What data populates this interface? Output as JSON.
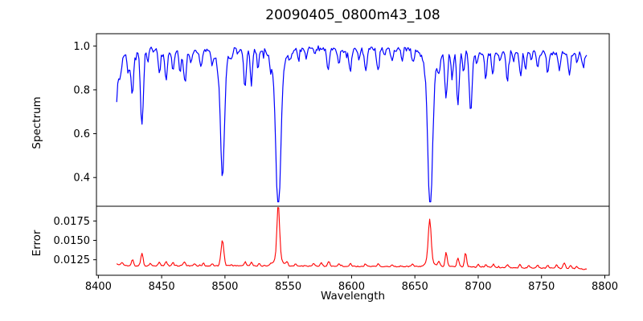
{
  "figure": {
    "title": "20090405_0800m43_108",
    "xlabel": "Wavelength",
    "background_color": "#ffffff",
    "frame_color": "#000000",
    "text_color": "#000000"
  },
  "chart_data": [
    {
      "type": "line",
      "title": "20090405_0800m43_108",
      "ylabel": "Spectrum",
      "xlabel": "Wavelength",
      "legend": "none",
      "grid": false,
      "line_color": "#0000ff",
      "xlim": [
        8398.5,
        8803.5
      ],
      "ylim": [
        0.269,
        1.056
      ],
      "yticks": [
        0.4,
        0.6,
        0.8,
        1.0
      ],
      "ytick_labels": [
        "0.4",
        "0.6",
        "0.8",
        "1.0"
      ],
      "x_data_range": [
        8414.5,
        8786
      ],
      "sample_step": 0.8,
      "seed": 7,
      "continuum_ref": 0.97,
      "noise_amp": 0.011,
      "spike_prob": 0.1,
      "spike_amp": 0.028,
      "continuum": [
        [
          8414,
          0.93
        ],
        [
          8418,
          0.955
        ],
        [
          8425,
          0.965
        ],
        [
          8432,
          0.975
        ],
        [
          8442,
          0.985
        ],
        [
          8452,
          0.97
        ],
        [
          8462,
          0.975
        ],
        [
          8472,
          0.972
        ],
        [
          8480,
          0.975
        ],
        [
          8490,
          0.978
        ],
        [
          8500,
          0.985
        ],
        [
          8512,
          0.99
        ],
        [
          8524,
          0.985
        ],
        [
          8535,
          0.988
        ],
        [
          8545,
          0.985
        ],
        [
          8555,
          0.985
        ],
        [
          8565,
          0.988
        ],
        [
          8575,
          0.99
        ],
        [
          8585,
          0.985
        ],
        [
          8595,
          0.975
        ],
        [
          8605,
          0.982
        ],
        [
          8615,
          0.985
        ],
        [
          8625,
          0.988
        ],
        [
          8635,
          0.985
        ],
        [
          8645,
          0.99
        ],
        [
          8655,
          0.985
        ],
        [
          8663,
          0.975
        ],
        [
          8672,
          0.97
        ],
        [
          8680,
          0.972
        ],
        [
          8690,
          0.97
        ],
        [
          8700,
          0.968
        ],
        [
          8710,
          0.97
        ],
        [
          8720,
          0.972
        ],
        [
          8730,
          0.97
        ],
        [
          8740,
          0.972
        ],
        [
          8750,
          0.968
        ],
        [
          8760,
          0.97
        ],
        [
          8770,
          0.965
        ],
        [
          8778,
          0.968
        ],
        [
          8786,
          0.962
        ]
      ],
      "absorption_lines_comment": "each entry = [wavelength, core_flux, sigma_angstrom]; three deepest are the Ca II triplet 8498/8542/8662",
      "absorption_lines": [
        [
          8413.0,
          0.78,
          2.2
        ],
        [
          8417.5,
          0.9,
          0.9
        ],
        [
          8423.5,
          0.89,
          0.9
        ],
        [
          8426.8,
          0.775,
          1.0
        ],
        [
          8434.4,
          0.625,
          1.1
        ],
        [
          8439.0,
          0.91,
          0.8
        ],
        [
          8448.2,
          0.87,
          0.9
        ],
        [
          8453.5,
          0.835,
          1.0
        ],
        [
          8459.0,
          0.875,
          0.9
        ],
        [
          8464.5,
          0.875,
          0.8
        ],
        [
          8468.4,
          0.83,
          1.0
        ],
        [
          8473.0,
          0.92,
          0.8
        ],
        [
          8481.0,
          0.9,
          0.9
        ],
        [
          8490.0,
          0.915,
          0.8
        ],
        [
          8494.0,
          0.93,
          0.7
        ],
        [
          8498.0,
          0.45,
          1.5
        ],
        [
          8498.0,
          0.9,
          4.0
        ],
        [
          8505.0,
          0.93,
          0.8
        ],
        [
          8510.0,
          0.94,
          0.7
        ],
        [
          8515.8,
          0.79,
          1.0
        ],
        [
          8520.8,
          0.81,
          0.9
        ],
        [
          8526.0,
          0.885,
          0.8
        ],
        [
          8536.0,
          0.93,
          0.8
        ],
        [
          8542.1,
          0.31,
          1.9
        ],
        [
          8542.1,
          0.88,
          5.0
        ],
        [
          8551.5,
          0.93,
          0.8
        ],
        [
          8558.0,
          0.935,
          0.8
        ],
        [
          8564.0,
          0.93,
          0.7
        ],
        [
          8571.0,
          0.935,
          0.7
        ],
        [
          8581.5,
          0.885,
          1.0
        ],
        [
          8590.0,
          0.915,
          0.8
        ],
        [
          8599.0,
          0.87,
          0.9
        ],
        [
          8606.0,
          0.93,
          0.7
        ],
        [
          8611.3,
          0.87,
          1.0
        ],
        [
          8620.8,
          0.87,
          1.0
        ],
        [
          8626.0,
          0.93,
          0.7
        ],
        [
          8632.0,
          0.92,
          0.8
        ],
        [
          8640.0,
          0.92,
          0.8
        ],
        [
          8648.5,
          0.9,
          0.9
        ],
        [
          8662.1,
          0.33,
          1.8
        ],
        [
          8662.1,
          0.88,
          5.0
        ],
        [
          8668.5,
          0.91,
          0.8
        ],
        [
          8674.7,
          0.76,
          1.0
        ],
        [
          8679.5,
          0.85,
          0.8
        ],
        [
          8684.0,
          0.73,
          1.0
        ],
        [
          8688.5,
          0.88,
          0.7
        ],
        [
          8694.0,
          0.7,
          1.1
        ],
        [
          8699.0,
          0.92,
          0.7
        ],
        [
          8706.0,
          0.85,
          0.9
        ],
        [
          8711.5,
          0.87,
          0.9
        ],
        [
          8717.0,
          0.93,
          0.7
        ],
        [
          8723.0,
          0.84,
          0.9
        ],
        [
          8728.0,
          0.92,
          0.7
        ],
        [
          8733.5,
          0.87,
          0.9
        ],
        [
          8737.5,
          0.89,
          0.8
        ],
        [
          8742.0,
          0.93,
          0.7
        ],
        [
          8747.0,
          0.9,
          0.8
        ],
        [
          8755.0,
          0.875,
          0.9
        ],
        [
          8764.0,
          0.89,
          0.8
        ],
        [
          8772.0,
          0.865,
          0.9
        ],
        [
          8778.0,
          0.92,
          0.7
        ],
        [
          8783.0,
          0.9,
          0.8
        ]
      ]
    },
    {
      "type": "line",
      "ylabel": "Error",
      "xlabel": "Wavelength",
      "legend": "none",
      "grid": false,
      "line_color": "#ff0000",
      "xlim": [
        8398.5,
        8803.5
      ],
      "ylim": [
        0.0105,
        0.0194
      ],
      "yticks": [
        0.0125,
        0.015,
        0.0175
      ],
      "ytick_labels": [
        "0.0125",
        "0.0150",
        "0.0175"
      ],
      "xticks": [
        8400,
        8450,
        8500,
        8550,
        8600,
        8650,
        8700,
        8750,
        8800
      ],
      "xtick_labels": [
        "8400",
        "8450",
        "8500",
        "8550",
        "8600",
        "8650",
        "8700",
        "8750",
        "8800"
      ],
      "x_data_range": [
        8414.5,
        8786
      ],
      "sample_step": 0.8,
      "seed": 13,
      "noise_amp": 6e-05,
      "spike_prob": 0.05,
      "spike_amp": 0.00015,
      "baseline": [
        [
          8414,
          0.012
        ],
        [
          8420,
          0.01175
        ],
        [
          8430,
          0.01172
        ],
        [
          8445,
          0.01172
        ],
        [
          8460,
          0.01173
        ],
        [
          8480,
          0.0117
        ],
        [
          8500,
          0.01172
        ],
        [
          8520,
          0.0117
        ],
        [
          8540,
          0.01172
        ],
        [
          8560,
          0.01168
        ],
        [
          8580,
          0.01168
        ],
        [
          8600,
          0.01165
        ],
        [
          8620,
          0.01163
        ],
        [
          8640,
          0.01163
        ],
        [
          8660,
          0.01165
        ],
        [
          8680,
          0.01163
        ],
        [
          8700,
          0.01155
        ],
        [
          8720,
          0.0115
        ],
        [
          8740,
          0.01145
        ],
        [
          8760,
          0.01142
        ],
        [
          8775,
          0.01138
        ],
        [
          8786,
          0.01125
        ]
      ],
      "peaks_comment": "each entry = [wavelength, height_above_baseline, sigma_angstrom]",
      "peaks": [
        [
          8419,
          0.00035,
          0.8
        ],
        [
          8427,
          0.00085,
          0.8
        ],
        [
          8434.4,
          0.00165,
          0.9
        ],
        [
          8441,
          0.0003,
          0.7
        ],
        [
          8448,
          0.00045,
          0.8
        ],
        [
          8453.5,
          0.00055,
          0.8
        ],
        [
          8459,
          0.0004,
          0.7
        ],
        [
          8468,
          0.00055,
          0.8
        ],
        [
          8476,
          0.0003,
          0.7
        ],
        [
          8483,
          0.00035,
          0.7
        ],
        [
          8490,
          0.0003,
          0.7
        ],
        [
          8498,
          0.00335,
          1.1
        ],
        [
          8505,
          0.0002,
          0.7
        ],
        [
          8516,
          0.00055,
          0.8
        ],
        [
          8521,
          0.00045,
          0.8
        ],
        [
          8527,
          0.0003,
          0.7
        ],
        [
          8536,
          0.0002,
          0.7
        ],
        [
          8542.1,
          0.00685,
          1.0
        ],
        [
          8542.1,
          0.0012,
          2.8
        ],
        [
          8549,
          0.0005,
          0.8
        ],
        [
          8556,
          0.0002,
          0.7
        ],
        [
          8570,
          0.00035,
          0.7
        ],
        [
          8576,
          0.0004,
          0.7
        ],
        [
          8582,
          0.0006,
          0.8
        ],
        [
          8590,
          0.0003,
          0.7
        ],
        [
          8599,
          0.0004,
          0.7
        ],
        [
          8611,
          0.00035,
          0.7
        ],
        [
          8621,
          0.00035,
          0.7
        ],
        [
          8632,
          0.0002,
          0.7
        ],
        [
          8648,
          0.0003,
          0.7
        ],
        [
          8661.7,
          0.0052,
          1.1
        ],
        [
          8661.7,
          0.0009,
          2.6
        ],
        [
          8669,
          0.0007,
          0.8
        ],
        [
          8674.7,
          0.00185,
          0.8
        ],
        [
          8684,
          0.0011,
          0.8
        ],
        [
          8690,
          0.00185,
          0.8
        ],
        [
          8700,
          0.0004,
          0.7
        ],
        [
          8706,
          0.0003,
          0.7
        ],
        [
          8712,
          0.0004,
          0.7
        ],
        [
          8723,
          0.00035,
          0.7
        ],
        [
          8733,
          0.00045,
          0.7
        ],
        [
          8740,
          0.0003,
          0.7
        ],
        [
          8747,
          0.0004,
          0.7
        ],
        [
          8755,
          0.0004,
          0.7
        ],
        [
          8762,
          0.0005,
          0.7
        ],
        [
          8768,
          0.0007,
          0.8
        ],
        [
          8773,
          0.0004,
          0.7
        ],
        [
          8778,
          0.0003,
          0.7
        ]
      ]
    }
  ]
}
